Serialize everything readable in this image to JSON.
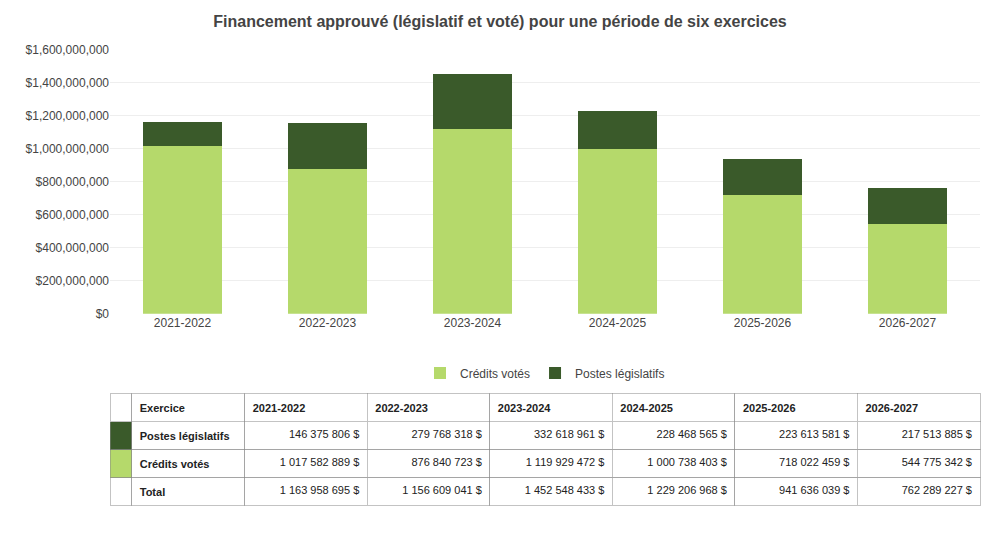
{
  "chart_data": {
    "type": "bar",
    "title": "Financement approuvé (législatif et voté) pour une période de six exercices",
    "categories": [
      "2021-2022",
      "2022-2023",
      "2023-2024",
      "2024-2025",
      "2025-2026",
      "2026-2027"
    ],
    "series": [
      {
        "name": "Crédits votés",
        "color": "#b5d96b",
        "values": [
          1017582889,
          876840723,
          1119929472,
          1000738403,
          718022459,
          544775342
        ]
      },
      {
        "name": "Postes législatifs",
        "color": "#3a5a2a",
        "values": [
          146375806,
          279768318,
          332618961,
          228468565,
          223613581,
          217513885
        ]
      }
    ],
    "stacked": true,
    "ylim": [
      0,
      1600000000
    ],
    "yticks": [
      {
        "value": 0,
        "label": "$0"
      },
      {
        "value": 200000000,
        "label": "$200,000,000"
      },
      {
        "value": 400000000,
        "label": "$400,000,000"
      },
      {
        "value": 600000000,
        "label": "$600,000,000"
      },
      {
        "value": 800000000,
        "label": "$800,000,000"
      },
      {
        "value": 1000000000,
        "label": "$1,000,000,000"
      },
      {
        "value": 1200000000,
        "label": "$1,200,000,000"
      },
      {
        "value": 1400000000,
        "label": "$1,400,000,000"
      },
      {
        "value": 1600000000,
        "label": "$1,600,000,000"
      }
    ],
    "grid": true,
    "legend": "bottom",
    "table": {
      "header": [
        "Exercice",
        "2021-2022",
        "2022-2023",
        "2023-2024",
        "2024-2025",
        "2025-2026",
        "2026-2027"
      ],
      "rows": [
        {
          "label": "Postes législatifs",
          "color": "#3a5a2a",
          "values": [
            "146 375 806 $",
            "279 768 318 $",
            "332 618 961 $",
            "228 468 565 $",
            "223 613 581 $",
            "217 513 885 $"
          ]
        },
        {
          "label": "Crédits votés",
          "color": "#b5d96b",
          "values": [
            "1 017 582 889 $",
            "876 840 723 $",
            "1 119 929 472 $",
            "1 000 738 403 $",
            "718 022 459 $",
            "544 775 342 $"
          ]
        },
        {
          "label": "Total",
          "values": [
            "1 163 958 695 $",
            "1 156 609 041 $",
            "1 452 548 433 $",
            "1 229 206 968 $",
            "941 636 039 $",
            "762 289 227 $"
          ]
        }
      ]
    }
  }
}
